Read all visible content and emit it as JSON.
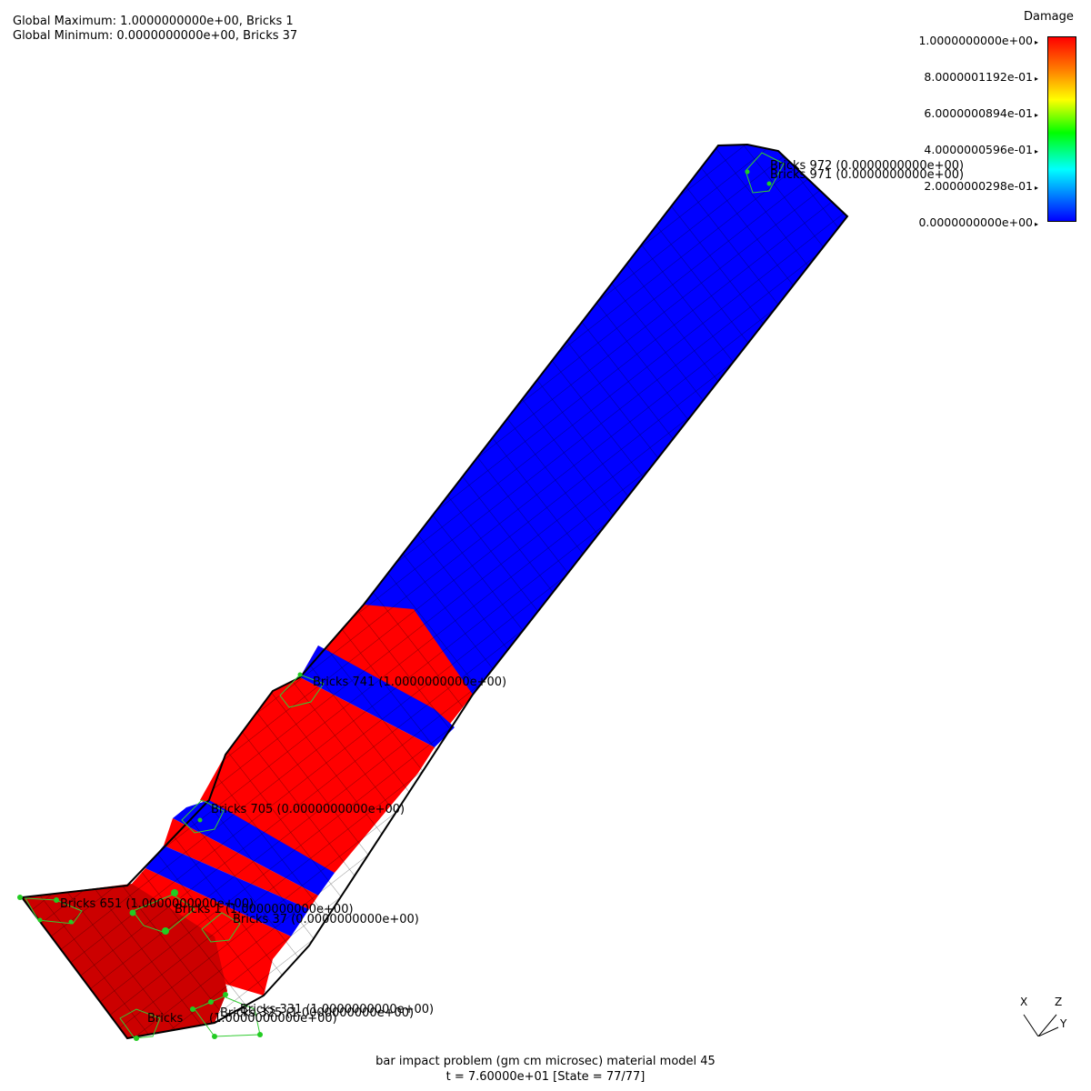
{
  "header": {
    "global_max": "Global Maximum: 1.0000000000e+00, Bricks 1",
    "global_min": "Global Minimum: 0.0000000000e+00, Bricks 37"
  },
  "colorbar": {
    "title": "Damage",
    "ticks": [
      "1.0000000000e+00",
      "8.0000001192e-01",
      "6.0000000894e-01",
      "4.0000000596e-01",
      "2.0000000298e-01",
      "0.0000000000e+00"
    ],
    "colors": [
      "#ff0000",
      "#ff8000",
      "#ffff00",
      "#00ff00",
      "#00ffff",
      "#0000ff"
    ]
  },
  "labels": [
    {
      "id": "bricks-972",
      "text": "Bricks 972 (0.0000000000e+00)"
    },
    {
      "id": "bricks-971",
      "text": "Bricks 971 (0.0000000000e+00)"
    },
    {
      "id": "bricks-741",
      "text": "Bricks 741 (1.0000000000e+00)"
    },
    {
      "id": "bricks-705",
      "text": "Bricks 705 (0.0000000000e+00)"
    },
    {
      "id": "bricks-651",
      "text": "Bricks 651 (1.0000000000e+00)"
    },
    {
      "id": "bricks-1",
      "text": "Bricks 1 (1.0000000000e+00)"
    },
    {
      "id": "bricks-37",
      "text": "Bricks 37 (0.0000000000e+00)"
    },
    {
      "id": "bricks-331",
      "text": "Bricks 331 (1.0000000000e+00)"
    },
    {
      "id": "bricks-325",
      "text": "Bricks 325 (1.0000000000e+00)"
    },
    {
      "id": "bricks-bottom",
      "text": "Bricks"
    },
    {
      "id": "bricks-bottom-b",
      "text": "(1.0000000000e+00)"
    }
  ],
  "footer": {
    "title": "bar impact problem (gm cm microsec) material model 45",
    "state": "t = 7.60000e+01 [State = 77/77]"
  },
  "axes": {
    "x": "X",
    "y": "Y",
    "z": "Z"
  },
  "colors": {
    "damage_high": "#ff0000",
    "damage_low": "#0000ff",
    "flange": "#cc0000",
    "marker": "#00cc00"
  }
}
